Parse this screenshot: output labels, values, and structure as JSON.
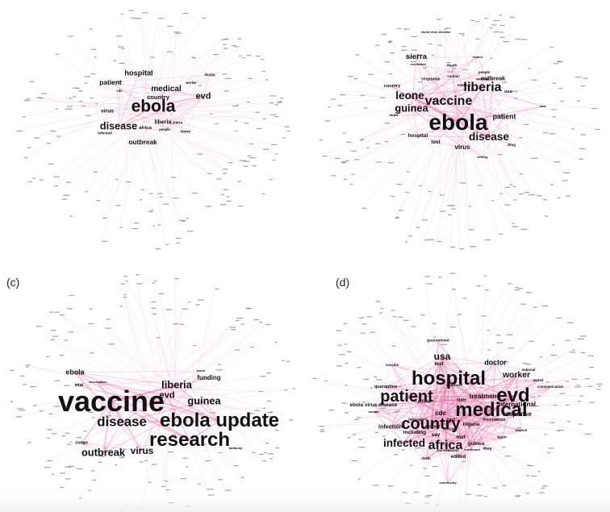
{
  "panels": [
    {
      "id": "a",
      "label": "",
      "words": [
        {
          "text": "ebola",
          "weight": 5
        },
        {
          "text": "disease",
          "weight": 3
        },
        {
          "text": "evd",
          "weight": 2.6
        },
        {
          "text": "medical",
          "weight": 2.4
        },
        {
          "text": "hospital",
          "weight": 2.2
        },
        {
          "text": "patient",
          "weight": 2.0
        },
        {
          "text": "country",
          "weight": 1.8
        },
        {
          "text": "outbreak",
          "weight": 2.0
        },
        {
          "text": "liberia",
          "weight": 1.7
        },
        {
          "text": "virus",
          "weight": 1.6
        },
        {
          "text": "africa",
          "weight": 1.4
        },
        {
          "text": "sierra",
          "weight": 1.1
        },
        {
          "text": "leone",
          "weight": 1.1
        },
        {
          "text": "infected",
          "weight": 1.1
        },
        {
          "text": "cdc",
          "weight": 1.0
        },
        {
          "text": "people",
          "weight": 1.0
        },
        {
          "text": "worker",
          "weight": 1.0
        },
        {
          "text": "doctor",
          "weight": 1.0
        }
      ]
    },
    {
      "id": "b",
      "label": "",
      "words": [
        {
          "text": "ebola",
          "weight": 7
        },
        {
          "text": "vaccine",
          "weight": 4
        },
        {
          "text": "liberia",
          "weight": 4
        },
        {
          "text": "leone",
          "weight": 3.4
        },
        {
          "text": "guinea",
          "weight": 3.2
        },
        {
          "text": "disease",
          "weight": 3.4
        },
        {
          "text": "sierra",
          "weight": 2.4
        },
        {
          "text": "patient",
          "weight": 2.2
        },
        {
          "text": "virus",
          "weight": 2.0
        },
        {
          "text": "outbreak",
          "weight": 1.8
        },
        {
          "text": "hospital",
          "weight": 1.6
        },
        {
          "text": "test",
          "weight": 1.6
        },
        {
          "text": "usa",
          "weight": 1.4
        },
        {
          "text": "country",
          "weight": 1.4
        },
        {
          "text": "response",
          "weight": 1.3
        },
        {
          "text": "worker",
          "weight": 1.2
        },
        {
          "text": "death",
          "weight": 1.2
        },
        {
          "text": "contact",
          "weight": 1.1
        },
        {
          "text": "people",
          "weight": 1.1
        },
        {
          "text": "medical",
          "weight": 1.1
        },
        {
          "text": "africa",
          "weight": 1.0
        },
        {
          "text": "drug",
          "weight": 1.1
        },
        {
          "text": "tested",
          "weight": 1.0
        },
        {
          "text": "confirmed",
          "weight": 1.0
        },
        {
          "text": "ebola virus disease",
          "weight": 1.0
        },
        {
          "text": "testing",
          "weight": 1.0
        },
        {
          "text": "trial",
          "weight": 1.0
        }
      ]
    },
    {
      "id": "c",
      "label": "(c)",
      "words": [
        {
          "text": "vaccine",
          "weight": 9
        },
        {
          "text": "ebola update",
          "weight": 6
        },
        {
          "text": "research",
          "weight": 6
        },
        {
          "text": "disease",
          "weight": 4.2
        },
        {
          "text": "outbreak",
          "weight": 3.2
        },
        {
          "text": "virus",
          "weight": 3
        },
        {
          "text": "liberia",
          "weight": 3.2
        },
        {
          "text": "guinea",
          "weight": 3.2
        },
        {
          "text": "evd",
          "weight": 2.8
        },
        {
          "text": "ebola",
          "weight": 2.2
        },
        {
          "text": "funding",
          "weight": 2.0
        },
        {
          "text": "trial",
          "weight": 1.4
        },
        {
          "text": "congo",
          "weight": 1.3
        },
        {
          "text": "vaccination",
          "weight": 1.0
        },
        {
          "text": "leone",
          "weight": 1.0
        },
        {
          "text": "antibody",
          "weight": 1.0
        }
      ]
    },
    {
      "id": "d",
      "label": "(d)",
      "words": [
        {
          "text": "hospital",
          "weight": 6
        },
        {
          "text": "evd",
          "weight": 6
        },
        {
          "text": "medical",
          "weight": 6
        },
        {
          "text": "patient",
          "weight": 5
        },
        {
          "text": "country",
          "weight": 5
        },
        {
          "text": "africa",
          "weight": 4
        },
        {
          "text": "infected",
          "weight": 3.4
        },
        {
          "text": "usa",
          "weight": 3
        },
        {
          "text": "worker",
          "weight": 2.6
        },
        {
          "text": "doctor",
          "weight": 2.2
        },
        {
          "text": "treatment",
          "weight": 2.0
        },
        {
          "text": "international",
          "weight": 2.0
        },
        {
          "text": "response",
          "weight": 2.0
        },
        {
          "text": "cdc",
          "weight": 2.0
        },
        {
          "text": "infection",
          "weight": 1.8
        },
        {
          "text": "including",
          "weight": 1.6
        },
        {
          "text": "ebola virus disease",
          "weight": 1.6
        },
        {
          "text": "test",
          "weight": 1.6
        },
        {
          "text": "quarantine",
          "weight": 1.4
        },
        {
          "text": "guarantined",
          "weight": 1.2
        },
        {
          "text": "nigeria",
          "weight": 1.6
        },
        {
          "text": "msf",
          "weight": 1.6
        },
        {
          "text": "say",
          "weight": 1.6
        },
        {
          "text": "guinea",
          "weight": 1.6
        },
        {
          "text": "edited",
          "weight": 1.6
        },
        {
          "text": "nation",
          "weight": 1.4
        },
        {
          "text": "official",
          "weight": 1.3
        },
        {
          "text": "care",
          "weight": 1.3
        },
        {
          "text": "state",
          "weight": 1.3
        },
        {
          "text": "fever",
          "weight": 1.2
        },
        {
          "text": "drug",
          "weight": 1.2
        },
        {
          "text": "team",
          "weight": 1.2
        },
        {
          "text": "death",
          "weight": 1.1
        },
        {
          "text": "transmission",
          "weight": 1.1
        },
        {
          "text": "communication",
          "weight": 1.1
        },
        {
          "text": "tested",
          "weight": 1.1
        },
        {
          "text": "vaccine",
          "weight": 1.1
        },
        {
          "text": "human",
          "weight": 1.0
        },
        {
          "text": "contact",
          "weight": 1.3
        },
        {
          "text": "community",
          "weight": 1.0
        },
        {
          "text": "african",
          "weight": 1.2
        },
        {
          "text": "laboratory",
          "weight": 1.2
        },
        {
          "text": "source",
          "weight": 1.1
        },
        {
          "text": "national",
          "weight": 1.1
        },
        {
          "text": "confirmed",
          "weight": 1.0
        },
        {
          "text": "suspected",
          "weight": 1.0
        }
      ]
    }
  ],
  "colors": {
    "edge": "#e46aa1",
    "edge_faint": "#f3b6cf",
    "node_dot": "#555555",
    "word": "#111111"
  }
}
